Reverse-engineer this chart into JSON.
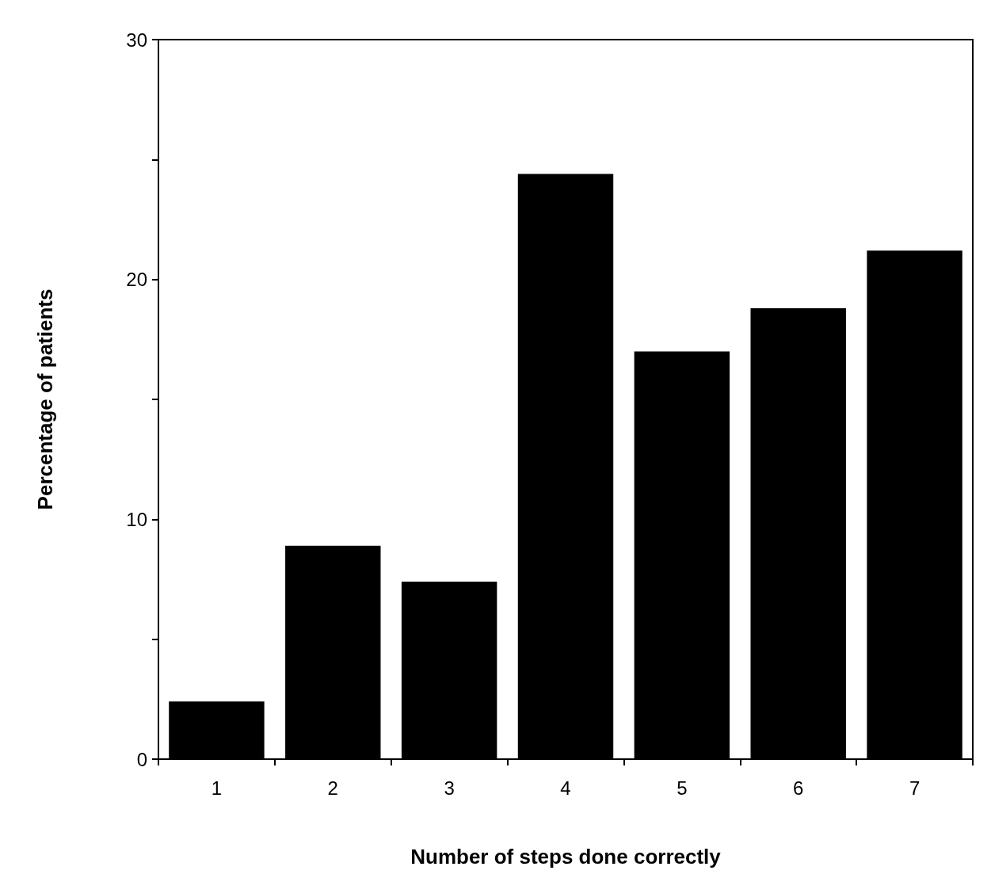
{
  "chart_data": {
    "type": "bar",
    "xlabel": "Number of steps done correctly",
    "ylabel": "Percentage of patients",
    "categories": [
      "1",
      "2",
      "3",
      "4",
      "5",
      "6",
      "7"
    ],
    "values": [
      2.4,
      8.9,
      7.4,
      24.4,
      17.0,
      18.8,
      21.2
    ],
    "color": "#000000",
    "ylim": [
      0,
      30
    ],
    "yticks": [
      0,
      {
        "value": 5,
        "label": null
      },
      10,
      {
        "value": 15,
        "label": null
      },
      20,
      {
        "value": 25,
        "label": null
      },
      30
    ],
    "grid": false
  }
}
